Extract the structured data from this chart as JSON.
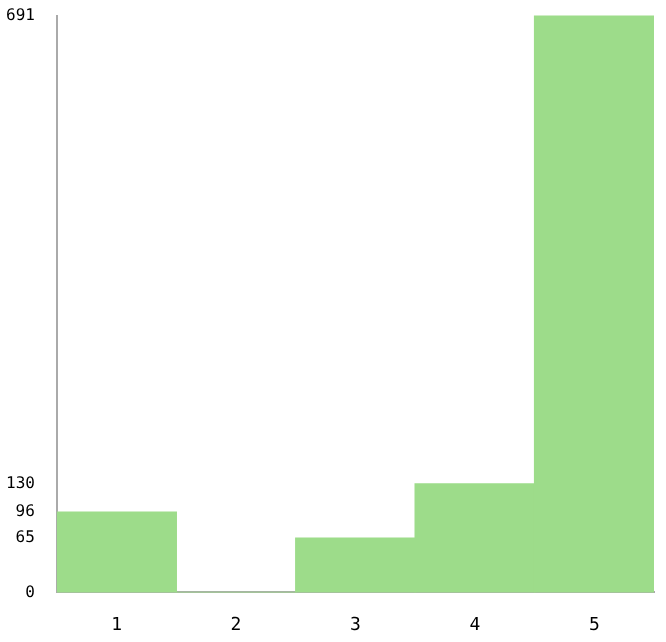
{
  "chart_data": {
    "type": "bar",
    "categories": [
      "1",
      "2",
      "3",
      "4",
      "5"
    ],
    "values": [
      96,
      0,
      65,
      130,
      691
    ],
    "color": "#9ddc8a",
    "ylim": [
      0,
      691
    ],
    "yticks": [
      0,
      65,
      96,
      130,
      691
    ],
    "grid": false
  }
}
